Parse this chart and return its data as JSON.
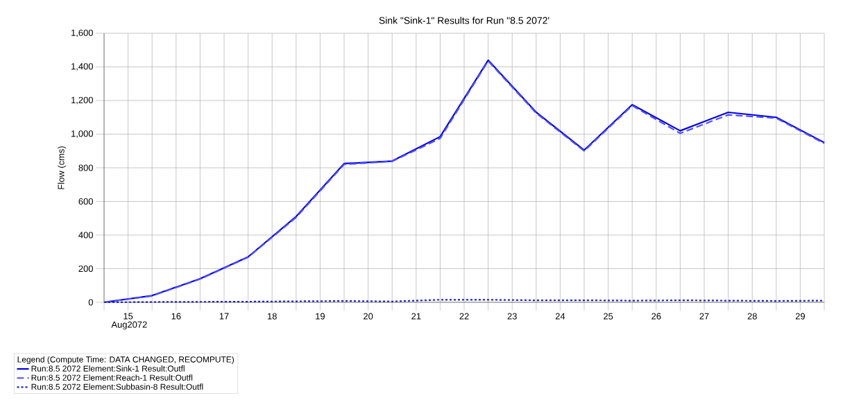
{
  "chart_data": {
    "type": "line",
    "title": "Sink \"Sink-1\" Results for Run \"8.5 2072'",
    "ylabel": "Flow (cms)",
    "xlabel": "Aug2072",
    "legend_title": "Legend (Compute Time: DATA CHANGED, RECOMPUTE)",
    "x": [
      "2072-08-15",
      "2072-08-16",
      "2072-08-17",
      "2072-08-18",
      "2072-08-19",
      "2072-08-20",
      "2072-08-21",
      "2072-08-22",
      "2072-08-23",
      "2072-08-24",
      "2072-08-25",
      "2072-08-26",
      "2072-08-27",
      "2072-08-28",
      "2072-08-29",
      "2072-08-30"
    ],
    "xlim": [
      "2072-08-15",
      "2072-08-30"
    ],
    "xticks": [
      {
        "value": "2072-08-15",
        "label": null
      },
      {
        "value": "2072-08-15T12:00",
        "label": "15"
      },
      {
        "value": "2072-08-16",
        "label": null
      },
      {
        "value": "2072-08-16T12:00",
        "label": "16"
      },
      {
        "value": "2072-08-17",
        "label": null
      },
      {
        "value": "2072-08-17T12:00",
        "label": "17"
      },
      {
        "value": "2072-08-18",
        "label": null
      },
      {
        "value": "2072-08-18T12:00",
        "label": "18"
      },
      {
        "value": "2072-08-19",
        "label": null
      },
      {
        "value": "2072-08-19T12:00",
        "label": "19"
      },
      {
        "value": "2072-08-20",
        "label": null
      },
      {
        "value": "2072-08-20T12:00",
        "label": "20"
      },
      {
        "value": "2072-08-21",
        "label": null
      },
      {
        "value": "2072-08-21T12:00",
        "label": "21"
      },
      {
        "value": "2072-08-22",
        "label": null
      },
      {
        "value": "2072-08-22T12:00",
        "label": "22"
      },
      {
        "value": "2072-08-23",
        "label": null
      },
      {
        "value": "2072-08-23T12:00",
        "label": "23"
      },
      {
        "value": "2072-08-24",
        "label": null
      },
      {
        "value": "2072-08-24T12:00",
        "label": "24"
      },
      {
        "value": "2072-08-25",
        "label": null
      },
      {
        "value": "2072-08-25T12:00",
        "label": "25"
      },
      {
        "value": "2072-08-26",
        "label": null
      },
      {
        "value": "2072-08-26T12:00",
        "label": "26"
      },
      {
        "value": "2072-08-27",
        "label": null
      },
      {
        "value": "2072-08-27T12:00",
        "label": "27"
      },
      {
        "value": "2072-08-28",
        "label": null
      },
      {
        "value": "2072-08-28T12:00",
        "label": "28"
      },
      {
        "value": "2072-08-29",
        "label": null
      },
      {
        "value": "2072-08-29T12:00",
        "label": "29"
      },
      {
        "value": "2072-08-30",
        "label": null
      }
    ],
    "ylim": [
      0,
      1600
    ],
    "yticks": [
      {
        "value": 0,
        "label": "0"
      },
      {
        "value": 200,
        "label": "200"
      },
      {
        "value": 400,
        "label": "400"
      },
      {
        "value": 600,
        "label": "600"
      },
      {
        "value": 800,
        "label": "800"
      },
      {
        "value": 1000,
        "label": "1,000"
      },
      {
        "value": 1200,
        "label": "1,200"
      },
      {
        "value": 1400,
        "label": "1,400"
      },
      {
        "value": 1600,
        "label": "1,600"
      }
    ],
    "grid": true,
    "legend": "bottom left",
    "series": [
      {
        "name": "Run:8.5 2072 Element:Sink-1 Result:Outfl",
        "color": "#0000e6",
        "line_style": "solid",
        "values": [
          0,
          40,
          140,
          270,
          510,
          825,
          840,
          985,
          1440,
          1130,
          905,
          1175,
          1020,
          1130,
          1100,
          950
        ]
      },
      {
        "name": "Run:8.5 2072 Element:Reach-1 Result:Outfl",
        "color": "#5050ff",
        "line_style": "dashed",
        "values": [
          0,
          38,
          138,
          268,
          505,
          820,
          838,
          975,
          1435,
          1125,
          900,
          1170,
          1005,
          1115,
          1095,
          945
        ]
      },
      {
        "name": "Run:8.5 2072 Element:Subbasin-8 Result:Outfl",
        "color": "#2020d0",
        "line_style": "dotted",
        "values": [
          0,
          2,
          3,
          4,
          6,
          8,
          5,
          15,
          15,
          12,
          12,
          10,
          12,
          10,
          8,
          10
        ]
      }
    ]
  }
}
